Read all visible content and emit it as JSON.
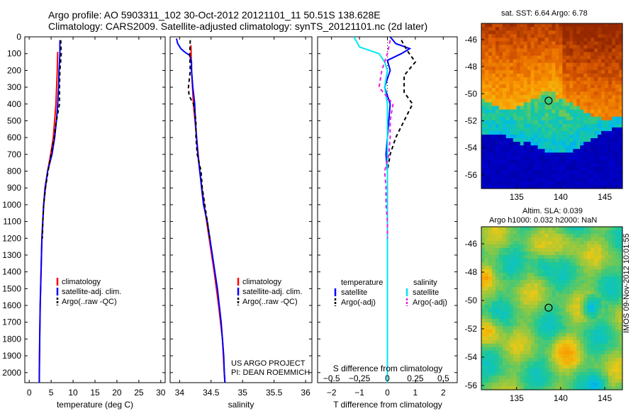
{
  "header": {
    "line1": "Argo profile: AO 5903311_102 30-Oct-2012 20121101_11 50.51S 138.628E",
    "line2": "Climatology: CARS2009. Satellite-adjusted climatology: synTS_20121101.nc (2d later)"
  },
  "colors": {
    "red": "#ff0000",
    "blue": "#0000ff",
    "black": "#000000",
    "cyan": "#00e5ee",
    "magenta": "#e020e0"
  },
  "depth_ticks": [
    0,
    100,
    200,
    300,
    400,
    500,
    600,
    700,
    800,
    900,
    1000,
    1100,
    1200,
    1300,
    1400,
    1500,
    1600,
    1700,
    1800,
    1900,
    2000
  ],
  "chart_data": [
    {
      "type": "line",
      "xlabel": "temperature (deg C)",
      "ylabel": "",
      "xlim": [
        -1,
        31
      ],
      "ylim": [
        2060,
        0
      ],
      "x_ticks": [
        0,
        5,
        10,
        15,
        20,
        25,
        30
      ],
      "y_ticks": [
        0,
        100,
        200,
        300,
        400,
        500,
        600,
        700,
        800,
        900,
        1000,
        1100,
        1200,
        1300,
        1400,
        1500,
        1600,
        1700,
        1800,
        1900,
        2000
      ],
      "legend": [
        "climatology",
        "satellite-adj. clim.",
        "Argo(..raw -QC)"
      ],
      "legend_placement": "lower-middle",
      "series": [
        {
          "name": "climatology",
          "color": "red",
          "dash": "",
          "y": [
            90,
            200,
            400,
            600,
            700,
            800,
            900,
            1000,
            1200,
            1400,
            1600,
            1800,
            1900,
            2000,
            2060
          ],
          "x": [
            6.5,
            6.4,
            6.1,
            5.5,
            4.9,
            4.2,
            3.7,
            3.3,
            2.9,
            2.7,
            2.5,
            2.4,
            2.35,
            2.3,
            2.3
          ]
        },
        {
          "name": "satellite-adj. clim.",
          "color": "blue",
          "dash": "",
          "y": [
            20,
            100,
            200,
            300,
            400,
            500,
            600,
            700,
            800,
            900,
            1000,
            1200,
            1400,
            1600,
            1800,
            2060
          ],
          "x": [
            7.0,
            7.0,
            6.8,
            6.7,
            6.5,
            6.2,
            5.8,
            5.2,
            4.2,
            3.6,
            3.3,
            2.9,
            2.7,
            2.5,
            2.4,
            2.3
          ]
        },
        {
          "name": "Argo(..raw -QC)",
          "color": "black",
          "dash": "5,4",
          "y": [
            20,
            100,
            200,
            300,
            400,
            500,
            600,
            700,
            800,
            900,
            1000,
            1100,
            1200
          ],
          "x": [
            7.2,
            7.3,
            7.0,
            6.9,
            6.9,
            6.2,
            5.7,
            5.0,
            4.3,
            3.7,
            3.3,
            3.1,
            3.0
          ]
        }
      ]
    },
    {
      "type": "line",
      "xlabel": "salinity",
      "ylabel": "",
      "xlim": [
        33.85,
        36.1
      ],
      "ylim": [
        2060,
        0
      ],
      "x_ticks": [
        34,
        34.5,
        35,
        35.5,
        36
      ],
      "x_tick_labels": [
        "34",
        "34.5",
        "35",
        "35.5",
        "36"
      ],
      "legend": [
        "climatology",
        "satellite-adj. clim.",
        "Argo(..raw -QC)"
      ],
      "legend_placement": "lower-middle",
      "annotation_lines": [
        "US ARGO PROJECT",
        "PI: DEAN ROEMMICH"
      ],
      "series": [
        {
          "name": "climatology",
          "color": "red",
          "dash": "",
          "y": [
            50,
            200,
            400,
            600,
            800,
            1000,
            1200,
            1400,
            1600,
            1800,
            2000,
            2060
          ],
          "x": [
            34.18,
            34.19,
            34.22,
            34.27,
            34.32,
            34.39,
            34.47,
            34.55,
            34.62,
            34.68,
            34.71,
            34.72
          ]
        },
        {
          "name": "satellite-adj. clim.",
          "color": "blue",
          "dash": "",
          "y": [
            10,
            40,
            70,
            90,
            110,
            150,
            200,
            300,
            400,
            500,
            600,
            700,
            800,
            900,
            1000,
            1100,
            1200,
            1300,
            1400,
            1500,
            1600,
            1700,
            1800,
            1900,
            2000,
            2060
          ],
          "x": [
            33.95,
            33.97,
            34.02,
            34.08,
            34.16,
            34.19,
            34.19,
            34.21,
            34.24,
            34.25,
            34.27,
            34.29,
            34.32,
            34.35,
            34.38,
            34.44,
            34.48,
            34.52,
            34.56,
            34.6,
            34.63,
            34.66,
            34.68,
            34.7,
            34.71,
            34.72
          ]
        },
        {
          "name": "Argo(..raw -QC)",
          "color": "black",
          "dash": "5,4",
          "y": [
            20,
            100,
            200,
            300,
            350,
            400,
            500,
            600,
            700,
            800,
            900,
            1000,
            1100,
            1200
          ],
          "x": [
            34.17,
            34.16,
            34.17,
            34.14,
            34.15,
            34.22,
            34.26,
            34.26,
            34.28,
            34.34,
            34.36,
            34.4,
            34.44,
            34.48
          ]
        }
      ]
    },
    {
      "type": "line",
      "xlabel": "T difference from climatology",
      "xlabel_top": "S difference from climatology",
      "xlim": [
        -2.5,
        2.5
      ],
      "ylim": [
        2060,
        0
      ],
      "x_ticks": [
        -2,
        -1,
        0,
        1,
        2
      ],
      "x_tick_labels": [
        "−2",
        "−1",
        "0",
        "1",
        "2"
      ],
      "top_ticks": [
        "−0.5",
        "−0.25",
        "0",
        "0.25",
        "0.5"
      ],
      "top_tick_positions": [
        -2,
        -1,
        0,
        1,
        2
      ],
      "legend_temperature": [
        "temperature",
        "satellite",
        "Argo(-adj)"
      ],
      "legend_salinity": [
        "salinity",
        "satellite",
        "Argo(-adj)"
      ],
      "legend_placement": "lower-middle",
      "series": [
        {
          "name": "satellite",
          "group": "temperature",
          "color": "blue",
          "dash": "",
          "y": [
            0,
            40,
            70,
            100,
            140,
            200,
            300,
            400,
            500,
            600,
            700,
            800,
            1000,
            1200,
            1500,
            1800,
            2060
          ],
          "x": [
            0.1,
            0.3,
            0.8,
            0.5,
            0.0,
            0.1,
            -0.1,
            0.1,
            0.05,
            0.0,
            -0.05,
            0.0,
            0.0,
            0.0,
            0.0,
            0.0,
            0.0
          ]
        },
        {
          "name": "Argo(-adj)",
          "group": "temperature",
          "color": "black",
          "dash": "5,4",
          "y": [
            20,
            80,
            150,
            230,
            330,
            400,
            500,
            600,
            700,
            800,
            900,
            1000,
            1100,
            1200
          ],
          "x": [
            0.5,
            0.7,
            1.0,
            0.6,
            0.6,
            0.9,
            0.6,
            0.3,
            0.1,
            0.0,
            0.0,
            0.0,
            0.0,
            0.0
          ]
        },
        {
          "name": "satellite",
          "group": "salinity",
          "color": "cyan",
          "dash": "",
          "y": [
            0,
            30,
            60,
            100,
            150,
            200,
            300,
            400,
            500,
            600,
            700,
            800,
            1000,
            1200,
            1500,
            1800,
            2060
          ],
          "x": [
            -1.2,
            -1.1,
            -1.0,
            -0.3,
            -0.1,
            0.0,
            -0.1,
            0.0,
            0.0,
            0.0,
            0.0,
            0.0,
            0.0,
            0.0,
            0.0,
            0.0,
            0.0
          ]
        },
        {
          "name": "Argo(-adj)",
          "group": "salinity",
          "color": "magenta",
          "dash": "5,4",
          "y": [
            20,
            100,
            200,
            300,
            400,
            500,
            600,
            700,
            800,
            900,
            1000,
            1100,
            1200
          ],
          "x": [
            0.1,
            0.0,
            -0.2,
            -0.3,
            0.2,
            0.1,
            0.1,
            0.05,
            -0.1,
            -0.05,
            -0.05,
            0.0,
            0.0
          ]
        }
      ]
    },
    {
      "type": "heatmap",
      "title": "sat. SST: 6.64 Argo: 6.78",
      "xlim": [
        131,
        147
      ],
      "ylim": [
        -57,
        -44.8
      ],
      "x_ticks": [
        135,
        140,
        145
      ],
      "y_ticks": [
        -46,
        -48,
        -50,
        -52,
        -54,
        -56
      ],
      "marker": {
        "lon": 138.628,
        "lat": -50.51
      }
    },
    {
      "type": "heatmap",
      "title_line1": "Altim. SLA: 0.039",
      "title_line2": "Argo h1000: 0.032 h2000: NaN",
      "xlim": [
        131,
        147
      ],
      "ylim": [
        -56.3,
        -44.8
      ],
      "x_ticks": [
        135,
        140,
        145
      ],
      "y_ticks": [
        -46,
        -48,
        -50,
        -52,
        -54,
        -56
      ],
      "marker": {
        "lon": 138.628,
        "lat": -50.51
      }
    }
  ],
  "vertical_stamp": "IMOS 09-Nov-2012 10:01:55"
}
